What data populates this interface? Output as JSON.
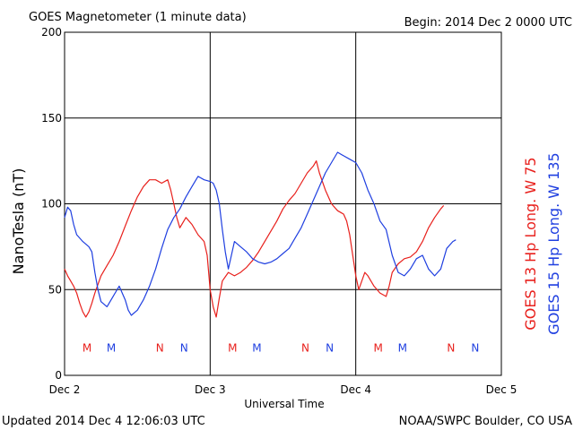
{
  "header": {
    "title": "GOES Magnetometer (1 minute data)",
    "begin": "Begin:  2014 Dec 2 0000 UTC"
  },
  "footer": {
    "updated": "Updated 2014 Dec  4 12:06:03 UTC",
    "credit": "NOAA/SWPC Boulder, CO USA"
  },
  "chart_data": {
    "type": "line",
    "xlabel": "Universal Time",
    "ylabel": "NanoTesla (nT)",
    "xlim": [
      0,
      72
    ],
    "ylim": [
      0,
      200
    ],
    "grid": true,
    "y_ticks": [
      0,
      50,
      100,
      150,
      200
    ],
    "x_ticks": [
      {
        "hour": 0,
        "label": "Dec 2"
      },
      {
        "hour": 24,
        "label": "Dec 3"
      },
      {
        "hour": 48,
        "label": "Dec 4"
      },
      {
        "hour": 72,
        "label": "Dec 5"
      }
    ],
    "series": [
      {
        "name": "GOES 13 Hp  Long. W 75",
        "color": "#e8201c",
        "points": [
          [
            0.0,
            62
          ],
          [
            0.5,
            58
          ],
          [
            1.0,
            55
          ],
          [
            1.5,
            52
          ],
          [
            2.0,
            48
          ],
          [
            2.5,
            42
          ],
          [
            3.0,
            37
          ],
          [
            3.5,
            34
          ],
          [
            4.0,
            37
          ],
          [
            4.5,
            42
          ],
          [
            5.0,
            48
          ],
          [
            6.0,
            58
          ],
          [
            7.0,
            64
          ],
          [
            8.0,
            70
          ],
          [
            9.0,
            78
          ],
          [
            10.0,
            87
          ],
          [
            11.0,
            96
          ],
          [
            12.0,
            104
          ],
          [
            13.0,
            110
          ],
          [
            14.0,
            114
          ],
          [
            15.0,
            114
          ],
          [
            16.0,
            112
          ],
          [
            17.0,
            114
          ],
          [
            17.5,
            108
          ],
          [
            18.0,
            100
          ],
          [
            18.5,
            92
          ],
          [
            19.0,
            86
          ],
          [
            20.0,
            92
          ],
          [
            21.0,
            88
          ],
          [
            22.0,
            82
          ],
          [
            23.0,
            78
          ],
          [
            23.5,
            70
          ],
          [
            24.0,
            50
          ],
          [
            24.5,
            40
          ],
          [
            25.0,
            34
          ],
          [
            25.5,
            45
          ],
          [
            26.0,
            55
          ],
          [
            27.0,
            60
          ],
          [
            28.0,
            58
          ],
          [
            29.0,
            60
          ],
          [
            30.0,
            63
          ],
          [
            31.0,
            67
          ],
          [
            32.0,
            72
          ],
          [
            33.0,
            78
          ],
          [
            34.0,
            84
          ],
          [
            35.0,
            90
          ],
          [
            36.0,
            97
          ],
          [
            37.0,
            102
          ],
          [
            38.0,
            106
          ],
          [
            39.0,
            112
          ],
          [
            40.0,
            118
          ],
          [
            41.0,
            122
          ],
          [
            41.5,
            125
          ],
          [
            42.0,
            118
          ],
          [
            43.0,
            108
          ],
          [
            44.0,
            100
          ],
          [
            45.0,
            96
          ],
          [
            46.0,
            94
          ],
          [
            46.5,
            90
          ],
          [
            47.0,
            82
          ],
          [
            47.5,
            70
          ],
          [
            48.0,
            58
          ],
          [
            48.5,
            50
          ],
          [
            49.0,
            55
          ],
          [
            49.5,
            60
          ],
          [
            50.0,
            58
          ],
          [
            51.0,
            52
          ],
          [
            52.0,
            48
          ],
          [
            53.0,
            46
          ],
          [
            53.5,
            52
          ],
          [
            54.0,
            60
          ],
          [
            55.0,
            65
          ],
          [
            56.0,
            68
          ],
          [
            57.0,
            69
          ],
          [
            58.0,
            72
          ],
          [
            59.0,
            78
          ],
          [
            60.0,
            86
          ],
          [
            61.0,
            92
          ],
          [
            62.0,
            97
          ],
          [
            62.5,
            99
          ]
        ]
      },
      {
        "name": "GOES 15 Hp  Long. W 135",
        "color": "#1f3fe0",
        "points": [
          [
            0.0,
            92
          ],
          [
            0.5,
            98
          ],
          [
            1.0,
            96
          ],
          [
            1.5,
            88
          ],
          [
            2.0,
            82
          ],
          [
            3.0,
            78
          ],
          [
            4.0,
            75
          ],
          [
            4.5,
            72
          ],
          [
            5.0,
            60
          ],
          [
            5.5,
            50
          ],
          [
            6.0,
            43
          ],
          [
            7.0,
            40
          ],
          [
            8.0,
            46
          ],
          [
            9.0,
            52
          ],
          [
            10.0,
            44
          ],
          [
            10.5,
            38
          ],
          [
            11.0,
            35
          ],
          [
            12.0,
            38
          ],
          [
            13.0,
            44
          ],
          [
            14.0,
            52
          ],
          [
            15.0,
            62
          ],
          [
            16.0,
            74
          ],
          [
            17.0,
            85
          ],
          [
            18.0,
            92
          ],
          [
            19.0,
            97
          ],
          [
            20.0,
            104
          ],
          [
            21.0,
            110
          ],
          [
            22.0,
            116
          ],
          [
            23.0,
            114
          ],
          [
            24.0,
            113
          ],
          [
            24.5,
            112
          ],
          [
            25.0,
            108
          ],
          [
            25.5,
            100
          ],
          [
            26.0,
            85
          ],
          [
            26.5,
            72
          ],
          [
            27.0,
            62
          ],
          [
            27.5,
            70
          ],
          [
            28.0,
            78
          ],
          [
            29.0,
            75
          ],
          [
            30.0,
            72
          ],
          [
            31.0,
            68
          ],
          [
            32.0,
            66
          ],
          [
            33.0,
            65
          ],
          [
            34.0,
            66
          ],
          [
            35.0,
            68
          ],
          [
            36.0,
            71
          ],
          [
            37.0,
            74
          ],
          [
            38.0,
            80
          ],
          [
            39.0,
            86
          ],
          [
            40.0,
            94
          ],
          [
            41.0,
            102
          ],
          [
            42.0,
            110
          ],
          [
            43.0,
            118
          ],
          [
            44.0,
            124
          ],
          [
            45.0,
            130
          ],
          [
            46.0,
            128
          ],
          [
            47.0,
            126
          ],
          [
            48.0,
            124
          ],
          [
            49.0,
            118
          ],
          [
            50.0,
            108
          ],
          [
            51.0,
            100
          ],
          [
            52.0,
            90
          ],
          [
            53.0,
            85
          ],
          [
            54.0,
            70
          ],
          [
            55.0,
            60
          ],
          [
            56.0,
            58
          ],
          [
            57.0,
            62
          ],
          [
            58.0,
            68
          ],
          [
            59.0,
            70
          ],
          [
            60.0,
            62
          ],
          [
            61.0,
            58
          ],
          [
            62.0,
            62
          ],
          [
            63.0,
            74
          ],
          [
            64.0,
            78
          ],
          [
            64.5,
            79
          ]
        ]
      }
    ],
    "annotations": [
      {
        "text": "M",
        "hour": 3.7,
        "nt": 16,
        "color": "#e8201c"
      },
      {
        "text": "M",
        "hour": 7.7,
        "nt": 16,
        "color": "#1f3fe0"
      },
      {
        "text": "N",
        "hour": 15.7,
        "nt": 16,
        "color": "#e8201c"
      },
      {
        "text": "N",
        "hour": 19.7,
        "nt": 16,
        "color": "#1f3fe0"
      },
      {
        "text": "M",
        "hour": 27.7,
        "nt": 16,
        "color": "#e8201c"
      },
      {
        "text": "M",
        "hour": 31.7,
        "nt": 16,
        "color": "#1f3fe0"
      },
      {
        "text": "N",
        "hour": 39.7,
        "nt": 16,
        "color": "#e8201c"
      },
      {
        "text": "N",
        "hour": 43.7,
        "nt": 16,
        "color": "#1f3fe0"
      },
      {
        "text": "M",
        "hour": 51.7,
        "nt": 16,
        "color": "#e8201c"
      },
      {
        "text": "M",
        "hour": 55.7,
        "nt": 16,
        "color": "#1f3fe0"
      },
      {
        "text": "N",
        "hour": 63.7,
        "nt": 16,
        "color": "#e8201c"
      },
      {
        "text": "N",
        "hour": 67.7,
        "nt": 16,
        "color": "#1f3fe0"
      }
    ]
  }
}
